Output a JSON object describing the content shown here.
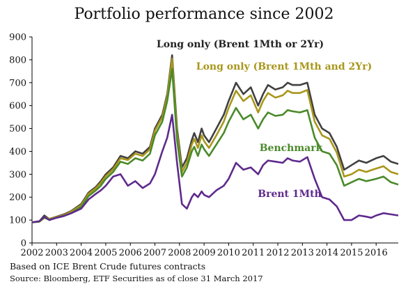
{
  "chart_data": {
    "type": "line",
    "title": "Portfolio performance since 2002",
    "xlabel": "",
    "ylabel": "",
    "xlim": [
      2002,
      2016.9
    ],
    "ylim": [
      0,
      900
    ],
    "grid": false,
    "y_ticks": [
      "0",
      "100",
      "200",
      "300",
      "400",
      "500",
      "600",
      "700",
      "800",
      "900"
    ],
    "x_ticks": [
      "2002",
      "2003",
      "2004",
      "2005",
      "2006",
      "2007",
      "2008",
      "2009",
      "2010",
      "2011",
      "2012",
      "2013",
      "2014",
      "2015",
      "2016"
    ],
    "series": [
      {
        "name": "Long only (Brent 1Mth or 2Yr)",
        "color": "#404040",
        "label_color": "#222222",
        "x": [
          2002.0,
          2002.3,
          2002.5,
          2002.7,
          2003.0,
          2003.3,
          2003.6,
          2004.0,
          2004.3,
          2004.6,
          2004.8,
          2005.0,
          2005.3,
          2005.6,
          2005.9,
          2006.2,
          2006.5,
          2006.8,
          2007.0,
          2007.3,
          2007.5,
          2007.7,
          2007.9,
          2008.1,
          2008.3,
          2008.5,
          2008.6,
          2008.75,
          2008.9,
          2009.0,
          2009.2,
          2009.5,
          2009.8,
          2010.0,
          2010.3,
          2010.6,
          2010.9,
          2011.2,
          2011.4,
          2011.6,
          2011.9,
          2012.2,
          2012.4,
          2012.6,
          2012.9,
          2013.2,
          2013.5,
          2013.8,
          2014.1,
          2014.4,
          2014.7,
          2015.0,
          2015.3,
          2015.6,
          2015.8,
          2016.0,
          2016.3,
          2016.6,
          2016.9
        ],
        "values": [
          90,
          95,
          120,
          105,
          115,
          125,
          140,
          170,
          220,
          245,
          270,
          300,
          330,
          380,
          370,
          400,
          390,
          420,
          500,
          560,
          650,
          820,
          500,
          330,
          370,
          450,
          480,
          440,
          500,
          470,
          440,
          500,
          560,
          620,
          700,
          650,
          680,
          600,
          650,
          690,
          670,
          680,
          700,
          690,
          690,
          700,
          560,
          500,
          480,
          420,
          320,
          340,
          360,
          350,
          360,
          370,
          380,
          355,
          345
        ]
      },
      {
        "name": "Long only (Brent 1Mth and 2Yr)",
        "color": "#a8961a",
        "label_color": "#a8961a",
        "x": [
          2002.0,
          2002.3,
          2002.5,
          2002.7,
          2003.0,
          2003.3,
          2003.6,
          2004.0,
          2004.3,
          2004.6,
          2004.8,
          2005.0,
          2005.3,
          2005.6,
          2005.9,
          2006.2,
          2006.5,
          2006.8,
          2007.0,
          2007.3,
          2007.5,
          2007.7,
          2007.9,
          2008.1,
          2008.3,
          2008.5,
          2008.6,
          2008.75,
          2008.9,
          2009.0,
          2009.2,
          2009.5,
          2009.8,
          2010.0,
          2010.3,
          2010.6,
          2010.9,
          2011.2,
          2011.4,
          2011.6,
          2011.9,
          2012.2,
          2012.4,
          2012.6,
          2012.9,
          2013.2,
          2013.5,
          2013.8,
          2014.1,
          2014.4,
          2014.7,
          2015.0,
          2015.3,
          2015.6,
          2015.8,
          2016.0,
          2016.3,
          2016.6,
          2016.9
        ],
        "values": [
          90,
          95,
          115,
          105,
          113,
          122,
          137,
          165,
          215,
          240,
          262,
          292,
          322,
          370,
          362,
          390,
          380,
          410,
          490,
          550,
          640,
          805,
          480,
          310,
          350,
          430,
          455,
          415,
          470,
          445,
          415,
          470,
          530,
          590,
          665,
          620,
          645,
          570,
          620,
          655,
          635,
          645,
          665,
          655,
          655,
          668,
          530,
          470,
          455,
          395,
          290,
          300,
          320,
          310,
          318,
          325,
          335,
          310,
          300
        ]
      },
      {
        "name": "Benchmark",
        "color": "#4a8a2a",
        "label_color": "#4a8a2a",
        "x": [
          2002.0,
          2002.3,
          2002.5,
          2002.7,
          2003.0,
          2003.3,
          2003.6,
          2004.0,
          2004.3,
          2004.6,
          2004.8,
          2005.0,
          2005.3,
          2005.6,
          2005.9,
          2006.2,
          2006.5,
          2006.8,
          2007.0,
          2007.3,
          2007.5,
          2007.7,
          2007.9,
          2008.1,
          2008.3,
          2008.5,
          2008.6,
          2008.75,
          2008.9,
          2009.0,
          2009.2,
          2009.5,
          2009.8,
          2010.0,
          2010.3,
          2010.6,
          2010.9,
          2011.2,
          2011.4,
          2011.6,
          2011.9,
          2012.2,
          2012.4,
          2012.6,
          2012.9,
          2013.2,
          2013.5,
          2013.8,
          2014.1,
          2014.4,
          2014.7,
          2015.0,
          2015.3,
          2015.6,
          2015.8,
          2016.0,
          2016.3,
          2016.6,
          2016.9
        ],
        "values": [
          90,
          93,
          110,
          102,
          110,
          118,
          130,
          158,
          205,
          230,
          250,
          280,
          310,
          355,
          345,
          370,
          360,
          390,
          470,
          530,
          620,
          760,
          450,
          290,
          330,
          400,
          420,
          380,
          430,
          410,
          380,
          430,
          480,
          530,
          590,
          540,
          560,
          500,
          540,
          570,
          555,
          560,
          580,
          575,
          570,
          580,
          460,
          400,
          390,
          340,
          250,
          265,
          280,
          270,
          275,
          280,
          290,
          265,
          255
        ]
      },
      {
        "name": "Brent 1Mth",
        "color": "#5e2a8c",
        "label_color": "#5e2a8c",
        "x": [
          2002.0,
          2002.3,
          2002.5,
          2002.7,
          2003.0,
          2003.3,
          2003.6,
          2004.0,
          2004.3,
          2004.6,
          2004.8,
          2005.0,
          2005.3,
          2005.6,
          2005.9,
          2006.2,
          2006.5,
          2006.8,
          2007.0,
          2007.3,
          2007.5,
          2007.7,
          2007.9,
          2008.1,
          2008.3,
          2008.5,
          2008.6,
          2008.75,
          2008.9,
          2009.0,
          2009.2,
          2009.5,
          2009.8,
          2010.0,
          2010.3,
          2010.6,
          2010.9,
          2011.2,
          2011.4,
          2011.6,
          2011.9,
          2012.2,
          2012.4,
          2012.6,
          2012.9,
          2013.2,
          2013.5,
          2013.8,
          2014.1,
          2014.4,
          2014.7,
          2015.0,
          2015.3,
          2015.6,
          2015.8,
          2016.0,
          2016.3,
          2016.6,
          2016.9
        ],
        "values": [
          90,
          95,
          115,
          100,
          110,
          118,
          130,
          150,
          190,
          215,
          230,
          250,
          290,
          300,
          250,
          270,
          240,
          260,
          300,
          400,
          460,
          560,
          350,
          170,
          150,
          200,
          215,
          200,
          225,
          210,
          200,
          230,
          250,
          280,
          350,
          320,
          330,
          300,
          340,
          360,
          355,
          350,
          370,
          360,
          355,
          375,
          280,
          200,
          190,
          160,
          100,
          100,
          120,
          115,
          110,
          120,
          130,
          125,
          120
        ]
      }
    ],
    "annotations": [
      "Long only (Brent 1Mth or 2Yr)",
      "Long only (Brent 1Mth and 2Yr)",
      "Benchmark",
      "Brent 1Mth"
    ]
  },
  "footer": {
    "line1": "Based on ICE Brent Crude futures contracts",
    "line2": "Source: Bloomberg, ETF Securities as of close 31 March 2017"
  }
}
